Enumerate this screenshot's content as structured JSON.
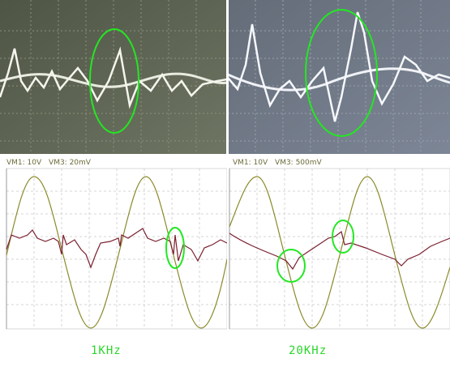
{
  "colors": {
    "scope_bg": "#5b6151",
    "scope_bg_right": "#6a7384",
    "highlight": "#22e822",
    "sine_trace": "#8c8a2a",
    "response_trace": "#7a1f2f",
    "label_text": "#6b6b3a",
    "caption_text": "#2bd62b"
  },
  "left": {
    "vm1_label": "VM1: 10V",
    "vm3_label": "VM3: 20mV",
    "caption": "1KHz"
  },
  "right": {
    "vm1_label": "VM1: 10V",
    "vm3_label": "VM3: 500mV",
    "caption": "20KHz"
  }
}
